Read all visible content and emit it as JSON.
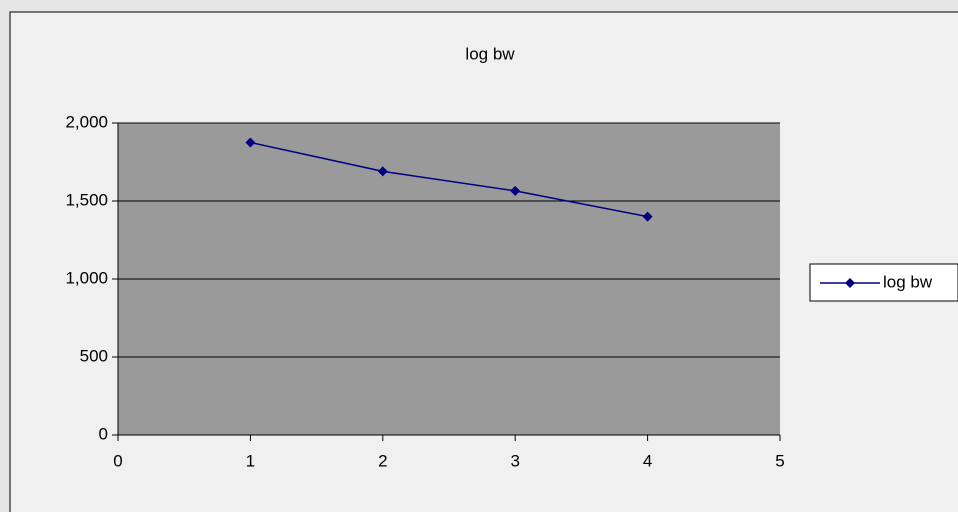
{
  "chart_data": {
    "type": "line",
    "title": "log bw",
    "x": [
      1,
      2,
      3,
      4
    ],
    "series": [
      {
        "name": "log bw",
        "color": "#000080",
        "values": [
          1875,
          1690,
          1565,
          1400
        ]
      }
    ],
    "xlim": [
      0,
      5
    ],
    "xticks": [
      0,
      1,
      2,
      3,
      4,
      5
    ],
    "ylim": [
      0,
      2000
    ],
    "yticks": [
      0,
      500,
      {
        "value": 1000,
        "label": "1,000"
      },
      {
        "value": 1500,
        "label": "1,500"
      },
      {
        "value": 2000,
        "label": "2,000"
      }
    ],
    "grid": true,
    "legend": "right"
  }
}
